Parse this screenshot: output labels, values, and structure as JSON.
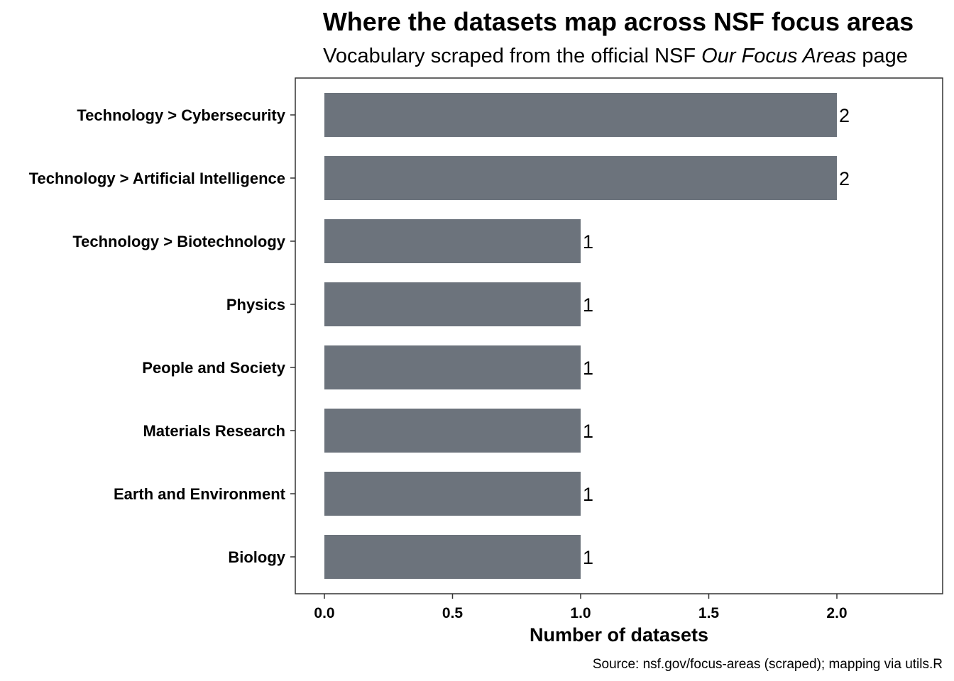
{
  "chart_data": {
    "type": "bar",
    "orientation": "horizontal",
    "title": "Where the datasets map across NSF focus areas",
    "subtitle_prefix": "Vocabulary scraped from the official NSF ",
    "subtitle_emphasis": "Our Focus Areas",
    "subtitle_suffix": " page",
    "xlabel": "Number of datasets",
    "ylabel": "",
    "caption": "Source: nsf.gov/focus-areas (scraped); mapping via utils.R",
    "categories": [
      "Technology > Cybersecurity",
      "Technology > Artificial Intelligence",
      "Technology > Biotechnology",
      "Physics",
      "People and Society",
      "Materials Research",
      "Earth and Environment",
      "Biology"
    ],
    "values": [
      2,
      2,
      1,
      1,
      1,
      1,
      1,
      1
    ],
    "value_labels": [
      "2",
      "2",
      "1",
      "1",
      "1",
      "1",
      "1",
      "1"
    ],
    "xlim": [
      0,
      2.3
    ],
    "xticks": [
      0,
      0.5,
      1,
      1.5,
      2
    ],
    "xtick_labels": [
      "0.0",
      "0.5",
      "1.0",
      "1.5",
      "2.0"
    ],
    "bar_color": "#6c737c",
    "grid": false,
    "panel_border": true,
    "legend": "none"
  }
}
